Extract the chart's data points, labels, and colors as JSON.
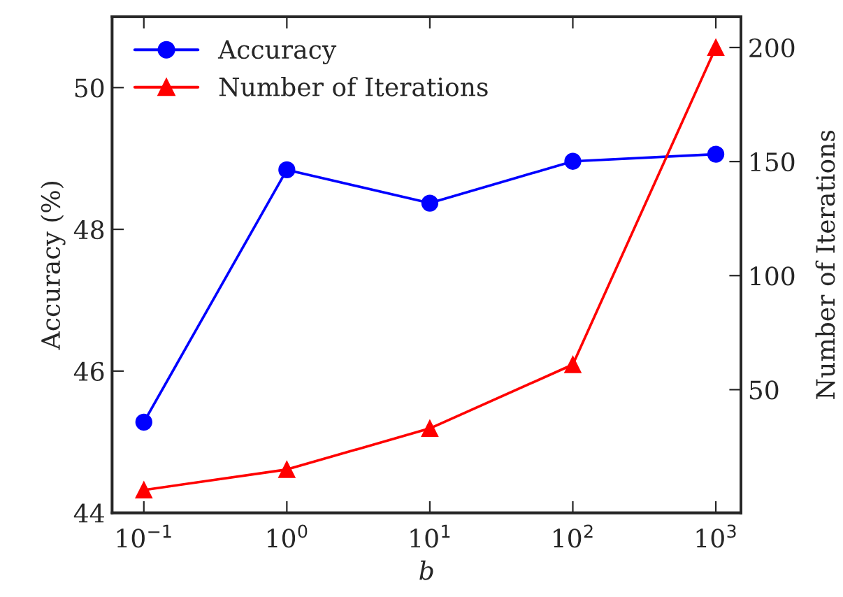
{
  "chart_data": {
    "type": "line",
    "xlabel": "b",
    "ylabel": "Accuracy (%)",
    "y2label": "Number of Iterations",
    "x": [
      0.1,
      1,
      10,
      100,
      1000
    ],
    "log": "x",
    "xlim": [
      0.06,
      1500
    ],
    "xticks": [
      {
        "value": 0.1,
        "label": "10$^{−1}$"
      },
      {
        "value": 1,
        "label": "10$^{0}$"
      },
      {
        "value": 10,
        "label": "10$^{1}$"
      },
      {
        "value": 100,
        "label": "10$^{2}$"
      },
      {
        "value": 1000,
        "label": "10$^{3}$"
      }
    ],
    "ylim": [
      44,
      51
    ],
    "yticks": [
      44,
      46,
      48,
      50
    ],
    "y2lim": [
      -4,
      213.5
    ],
    "y2ticks": [
      50,
      100,
      150,
      200
    ],
    "series": [
      {
        "name": "Accuracy",
        "color": "#0000ff",
        "marker": "circle",
        "values": [
          45.28,
          48.84,
          48.37,
          48.96,
          49.06
        ]
      },
      {
        "name": "Number of Iterations",
        "color": "#ff0000",
        "marker": "triangle",
        "axis": "y2",
        "values": [
          6,
          15,
          33,
          61,
          200
        ]
      }
    ],
    "legend": "top left",
    "grid": false
  }
}
